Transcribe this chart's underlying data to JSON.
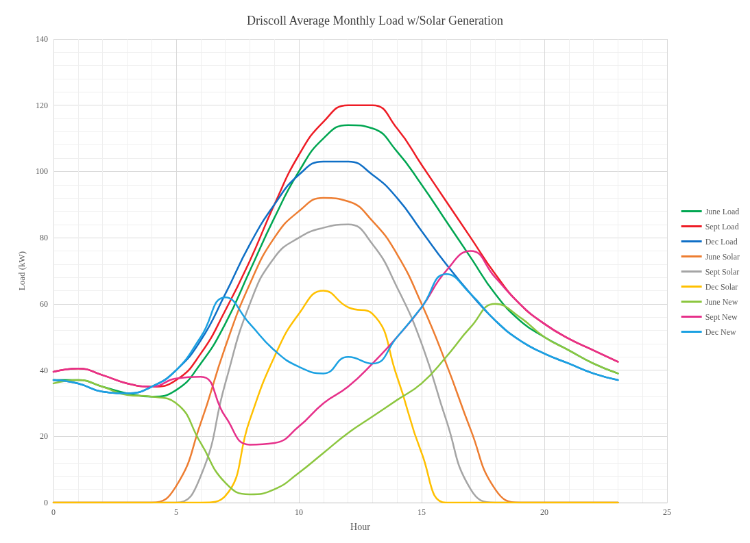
{
  "chart_data": {
    "type": "line",
    "title": "Driscoll Average Monthly Load w/Solar Generation",
    "xlabel": "Hour",
    "ylabel": "Load (kW)",
    "x": [
      0,
      1,
      2,
      3,
      4,
      5,
      6,
      7,
      8,
      9,
      10,
      11,
      12,
      13,
      14,
      15,
      16,
      17,
      18,
      19,
      20,
      21,
      22,
      23
    ],
    "xlim": [
      0,
      25
    ],
    "xticks": [
      0,
      5,
      10,
      15,
      20,
      25
    ],
    "ylim": [
      0,
      140
    ],
    "yticks": [
      0,
      20,
      40,
      60,
      80,
      100,
      120,
      140
    ],
    "grid": true,
    "legend": "right",
    "marker": "none",
    "line_style": "solid",
    "series": [
      {
        "name": "June Load",
        "color": "#00a651",
        "values": [
          37,
          37,
          35,
          33,
          32,
          34,
          42,
          54,
          70,
          86,
          100,
          110,
          114,
          113,
          106,
          96,
          85,
          74,
          63,
          55,
          50,
          46,
          42,
          39
        ]
      },
      {
        "name": "Sept Load",
        "color": "#ee1c25",
        "values": [
          39.5,
          40.5,
          38.5,
          36,
          35,
          37,
          45,
          58,
          73,
          90,
          105,
          115,
          120,
          120,
          113,
          102,
          91,
          80,
          69,
          60,
          54,
          49.5,
          46,
          42.5
        ]
      },
      {
        "name": "Dec Load",
        "color": "#0f6fc6",
        "values": [
          37,
          36,
          33.5,
          33,
          35,
          40,
          49,
          63,
          78,
          90,
          99,
          103,
          103,
          99,
          92,
          82,
          72,
          63,
          55,
          49,
          45,
          42,
          39,
          37
        ]
      },
      {
        "name": "June Solar",
        "color": "#ed7d31",
        "values": [
          0,
          0,
          0,
          0,
          0,
          5,
          24,
          47,
          66,
          80,
          88,
          92,
          91,
          85,
          75,
          60,
          42,
          22,
          4,
          0,
          0,
          0,
          0,
          0
        ]
      },
      {
        "name": "Sept Solar",
        "color": "#a5a5a5",
        "values": [
          0,
          0,
          0,
          0,
          0,
          0,
          8,
          36,
          60,
          74,
          80,
          83,
          84,
          78,
          65,
          48,
          25,
          4,
          0,
          0,
          0,
          0,
          0,
          0
        ]
      },
      {
        "name": "Dec Solar",
        "color": "#ffc000",
        "values": [
          0,
          0,
          0,
          0,
          0,
          0,
          0,
          2,
          25,
          44,
          57,
          64,
          59,
          57,
          38,
          15,
          0,
          0,
          0,
          0,
          0,
          0,
          0,
          0
        ]
      },
      {
        "name": "June New",
        "color": "#8cc63f",
        "values": [
          36,
          37,
          35,
          32.5,
          32,
          30,
          18,
          6,
          2.5,
          4,
          9,
          15,
          21,
          26,
          31,
          36,
          44,
          53,
          60,
          56,
          50,
          46,
          42,
          39
        ]
      },
      {
        "name": "Sept New",
        "color": "#e6308a",
        "values": [
          39.5,
          40.5,
          38.5,
          36,
          35,
          37.5,
          38,
          26,
          17.5,
          18,
          23,
          30,
          35,
          42,
          50,
          59,
          70,
          76,
          68,
          60,
          54,
          49.5,
          46,
          42.5
        ]
      },
      {
        "name": "Dec New",
        "color": "#1ba1e2",
        "values": [
          37,
          36,
          33.5,
          33,
          35,
          40,
          50,
          62,
          54,
          46,
          41,
          39,
          44,
          42,
          50,
          59,
          69,
          63,
          55,
          49,
          45,
          42,
          39,
          37
        ]
      }
    ]
  }
}
